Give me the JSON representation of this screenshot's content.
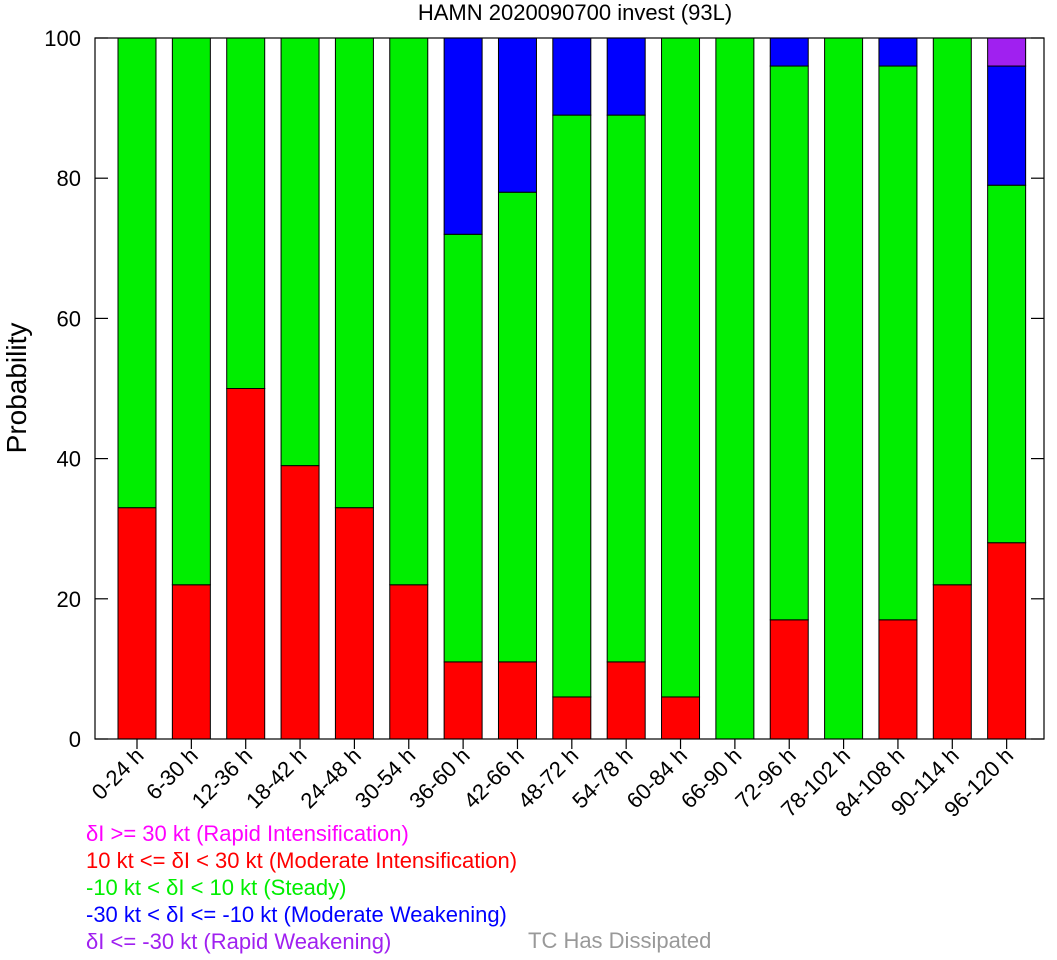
{
  "chart_data": {
    "type": "bar",
    "stacked": true,
    "title": "HAMN 2020090700 invest (93L)",
    "xlabel": "",
    "ylabel": "Probability",
    "ylim": [
      0,
      100
    ],
    "yticks": [
      0,
      20,
      40,
      60,
      80,
      100
    ],
    "grid": false,
    "categories": [
      "0-24 h",
      "6-30 h",
      "12-36 h",
      "18-42 h",
      "24-48 h",
      "30-54 h",
      "36-60 h",
      "42-66 h",
      "48-72 h",
      "54-78 h",
      "60-84 h",
      "66-90 h",
      "72-96 h",
      "78-102 h",
      "84-108 h",
      "90-114 h",
      "96-120 h"
    ],
    "series": [
      {
        "key": "ri",
        "color": "#ff00ff",
        "values": [
          0,
          0,
          0,
          0,
          0,
          0,
          0,
          0,
          0,
          0,
          0,
          0,
          0,
          0,
          0,
          0,
          0
        ]
      },
      {
        "key": "mi",
        "color": "#ff0000",
        "values": [
          33,
          22,
          50,
          39,
          33,
          22,
          11,
          11,
          6,
          11,
          6,
          0,
          17,
          0,
          17,
          22,
          28
        ]
      },
      {
        "key": "st",
        "color": "#00ee00",
        "values": [
          67,
          78,
          50,
          61,
          67,
          78,
          61,
          67,
          83,
          78,
          94,
          100,
          79,
          100,
          79,
          78,
          51
        ]
      },
      {
        "key": "mw",
        "color": "#0000ff",
        "values": [
          0,
          0,
          0,
          0,
          0,
          0,
          28,
          22,
          11,
          11,
          0,
          0,
          4,
          0,
          4,
          0,
          17
        ]
      },
      {
        "key": "rw",
        "color": "#a020f0",
        "values": [
          0,
          0,
          0,
          0,
          0,
          0,
          0,
          0,
          0,
          0,
          0,
          0,
          0,
          0,
          0,
          0,
          4
        ]
      },
      {
        "key": "dis",
        "color": "#999999",
        "values": [
          0,
          0,
          0,
          0,
          0,
          0,
          0,
          0,
          0,
          0,
          0,
          0,
          0,
          0,
          0,
          0,
          0
        ]
      }
    ]
  },
  "legend": {
    "ri": {
      "text": "δI >= 30 kt (Rapid Intensification)",
      "color": "#ff00ff"
    },
    "mi": {
      "text": "10 kt <= δI < 30 kt (Moderate Intensification)",
      "color": "#ff0000"
    },
    "st": {
      "text": "-10 kt < δI < 10 kt (Steady)",
      "color": "#00ee00"
    },
    "mw": {
      "text": "-30 kt < δI <= -10 kt (Moderate Weakening)",
      "color": "#0000ff"
    },
    "rw": {
      "text": "δI <= -30 kt (Rapid Weakening)",
      "color": "#a020f0"
    },
    "dis": {
      "text": "TC Has Dissipated",
      "color": "#999999"
    }
  }
}
